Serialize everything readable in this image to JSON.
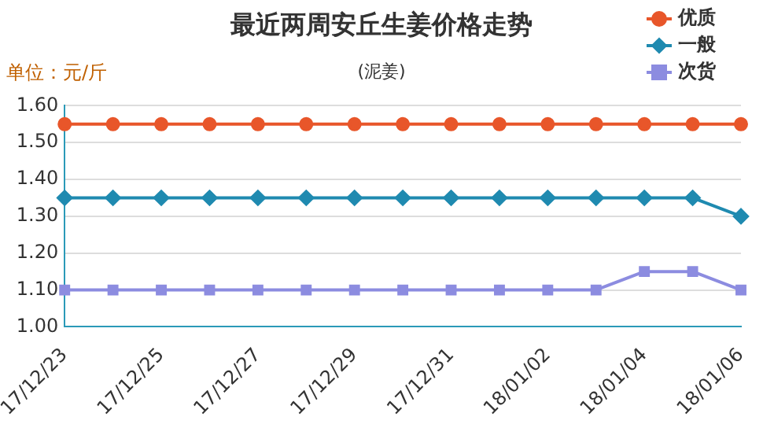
{
  "chart_data": {
    "type": "line",
    "title": "最近两周安丘生姜价格走势",
    "subtitle": "(泥姜)",
    "ylabel": "单位：元/斤",
    "categories": [
      "17/12/23",
      null,
      "17/12/25",
      null,
      "17/12/27",
      null,
      "17/12/29",
      null,
      "17/12/31",
      null,
      "18/01/02",
      null,
      "18/01/04",
      null,
      "18/01/06"
    ],
    "series": [
      {
        "name": "优质",
        "color": "#e8562a",
        "marker": "circle",
        "values": [
          1.55,
          1.55,
          1.55,
          1.55,
          1.55,
          1.55,
          1.55,
          1.55,
          1.55,
          1.55,
          1.55,
          1.55,
          1.55,
          1.55,
          1.55
        ]
      },
      {
        "name": "一般",
        "color": "#1f8ab0",
        "marker": "diamond",
        "values": [
          1.35,
          1.35,
          1.35,
          1.35,
          1.35,
          1.35,
          1.35,
          1.35,
          1.35,
          1.35,
          1.35,
          1.35,
          1.35,
          1.35,
          1.3
        ]
      },
      {
        "name": "次货",
        "color": "#8c8ce0",
        "marker": "square",
        "values": [
          1.1,
          1.1,
          1.1,
          1.1,
          1.1,
          1.1,
          1.1,
          1.1,
          1.1,
          1.1,
          1.1,
          1.1,
          1.15,
          1.15,
          1.1
        ]
      }
    ],
    "ylim": [
      1.0,
      1.6
    ],
    "yticks": [
      {
        "value": 1.0,
        "label": "1.00"
      },
      {
        "value": 1.1,
        "label": "1.10"
      },
      {
        "value": 1.2,
        "label": "1.20"
      },
      {
        "value": 1.3,
        "label": "1.30"
      },
      {
        "value": 1.4,
        "label": "1.40"
      },
      {
        "value": 1.5,
        "label": "1.50"
      },
      {
        "value": 1.6,
        "label": "1.60"
      }
    ],
    "grid": "y",
    "legend": "top right",
    "line_style": "solid"
  }
}
